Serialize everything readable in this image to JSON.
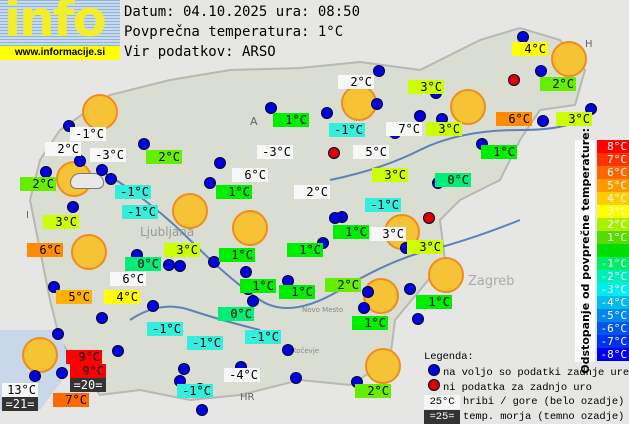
{
  "logo": {
    "text": "info",
    "url": "www.informacije.si"
  },
  "header": {
    "date_line": "Datum: 04.10.2025 ura: 08:50",
    "avg_temp_line": "Povprečna temperatura: 1°C",
    "source_line": "Vir podatkov: ARSO"
  },
  "map_labels": [
    "A",
    "HR",
    "H",
    "I",
    "Ljubljana",
    "Zagreb",
    "Novo Mesto",
    "Kočevje"
  ],
  "stations": [
    {
      "t": "-1°C",
      "type": "mountain"
    },
    {
      "t": "2°C",
      "type": "mountain"
    },
    {
      "t": "-3°C",
      "type": "mountain"
    },
    {
      "t": "2°C",
      "v": 2
    },
    {
      "t": "2°C",
      "v": 2
    },
    {
      "t": "-1°C",
      "v": -1
    },
    {
      "t": "-1°C",
      "v": -1
    },
    {
      "t": "3°C",
      "v": 3
    },
    {
      "t": "6°C",
      "v": 6
    },
    {
      "t": "3°C",
      "v": 3
    },
    {
      "t": "0°C",
      "v": 0
    },
    {
      "t": "6°C",
      "type": "mountain"
    },
    {
      "t": "5°C",
      "v": 5
    },
    {
      "t": "4°C",
      "v": 4
    },
    {
      "t": "2°C",
      "type": "mountain"
    },
    {
      "t": "1°C",
      "v": 1
    },
    {
      "t": "-1°C",
      "v": -1
    },
    {
      "t": "7°C",
      "type": "mountain"
    },
    {
      "t": "-3°C",
      "type": "mountain"
    },
    {
      "t": "5°C",
      "type": "mountain"
    },
    {
      "t": "3°C",
      "v": 3
    },
    {
      "t": "6°C",
      "type": "mountain"
    },
    {
      "t": "1°C",
      "v": 1
    },
    {
      "t": "2°C",
      "type": "mountain"
    },
    {
      "t": "-1°C",
      "v": -1
    },
    {
      "t": "1°C",
      "v": 1
    },
    {
      "t": "3°C",
      "type": "mountain"
    },
    {
      "t": "1°C",
      "v": 1
    },
    {
      "t": "1°C",
      "v": 1
    },
    {
      "t": "4°C",
      "v": 4
    },
    {
      "t": "3°C",
      "v": 3
    },
    {
      "t": "2°C",
      "v": 2
    },
    {
      "t": "6°C",
      "v": 6
    },
    {
      "t": "3°C",
      "v": 3
    },
    {
      "t": "3°C",
      "v": 3
    },
    {
      "t": "1°C",
      "v": 1
    },
    {
      "t": "0°C",
      "v": 0
    },
    {
      "t": "3°C",
      "v": 3
    },
    {
      "t": "1°C",
      "v": 1
    },
    {
      "t": "1°C",
      "v": 1
    },
    {
      "t": "2°C",
      "v": 2
    },
    {
      "t": "1°C",
      "v": 1
    },
    {
      "t": "0°C",
      "v": 0
    },
    {
      "t": "1°C",
      "v": 1
    },
    {
      "t": "-1°C",
      "v": -1
    },
    {
      "t": "-1°C",
      "v": -1
    },
    {
      "t": "-1°C",
      "v": -1
    },
    {
      "t": "-4°C",
      "type": "mountain"
    },
    {
      "t": "-1°C",
      "v": -1
    },
    {
      "t": "2°C",
      "v": 2
    },
    {
      "t": "9°C",
      "v": 9
    },
    {
      "t": "9°C",
      "v": 9
    },
    {
      "t": "=20=",
      "type": "sea"
    },
    {
      "t": "13°C",
      "type": "mountain"
    },
    {
      "t": "=21=",
      "type": "sea"
    },
    {
      "t": "7°C",
      "v": 7
    }
  ],
  "scale": {
    "title": "Odstopanje od povprečne temperature:",
    "steps": [
      {
        "label": "8°C",
        "color": "#ff0000"
      },
      {
        "label": "7°C",
        "color": "#ff3300"
      },
      {
        "label": "6°C",
        "color": "#ff6600"
      },
      {
        "label": "5°C",
        "color": "#ff9900"
      },
      {
        "label": "4°C",
        "color": "#ffcc00"
      },
      {
        "label": "3°C",
        "color": "#ffff00"
      },
      {
        "label": "2°C",
        "color": "#aaee00"
      },
      {
        "label": "1°C",
        "color": "#55dd00"
      },
      {
        "label": "",
        "color": "#00dd00"
      },
      {
        "label": "-1°C",
        "color": "#00ee66"
      },
      {
        "label": "-2°C",
        "color": "#00eebb"
      },
      {
        "label": "-3°C",
        "color": "#00eeee"
      },
      {
        "label": "-4°C",
        "color": "#00bbee"
      },
      {
        "label": "-5°C",
        "color": "#0088ee"
      },
      {
        "label": "-6°C",
        "color": "#0055ee"
      },
      {
        "label": "-7°C",
        "color": "#0033ee"
      },
      {
        "label": "-8°C",
        "color": "#0000ee"
      }
    ]
  },
  "label_colors": {
    "9": "#ff0000",
    "8": "#ff0000",
    "7": "#ff6a00",
    "6": "#ff8c00",
    "5": "#ffb000",
    "4": "#ffff00",
    "3": "#ccff00",
    "2": "#66ee00",
    "1": "#00ee00",
    "0": "#00ee77",
    "-1": "#33eedd",
    "-2": "#33eeee",
    "-3": "#33ddff",
    "-4": "#33bbff"
  },
  "legend": {
    "title": "Legenda:",
    "blue": "na voljo so podatki zadnje ure",
    "red": "ni podatka za zadnjo uro",
    "mountain_sample": "25°C",
    "mountain": "hribi / gore (belo ozadje)",
    "sea_sample": "=25=",
    "sea": "temp. morja (temno ozadje)"
  }
}
